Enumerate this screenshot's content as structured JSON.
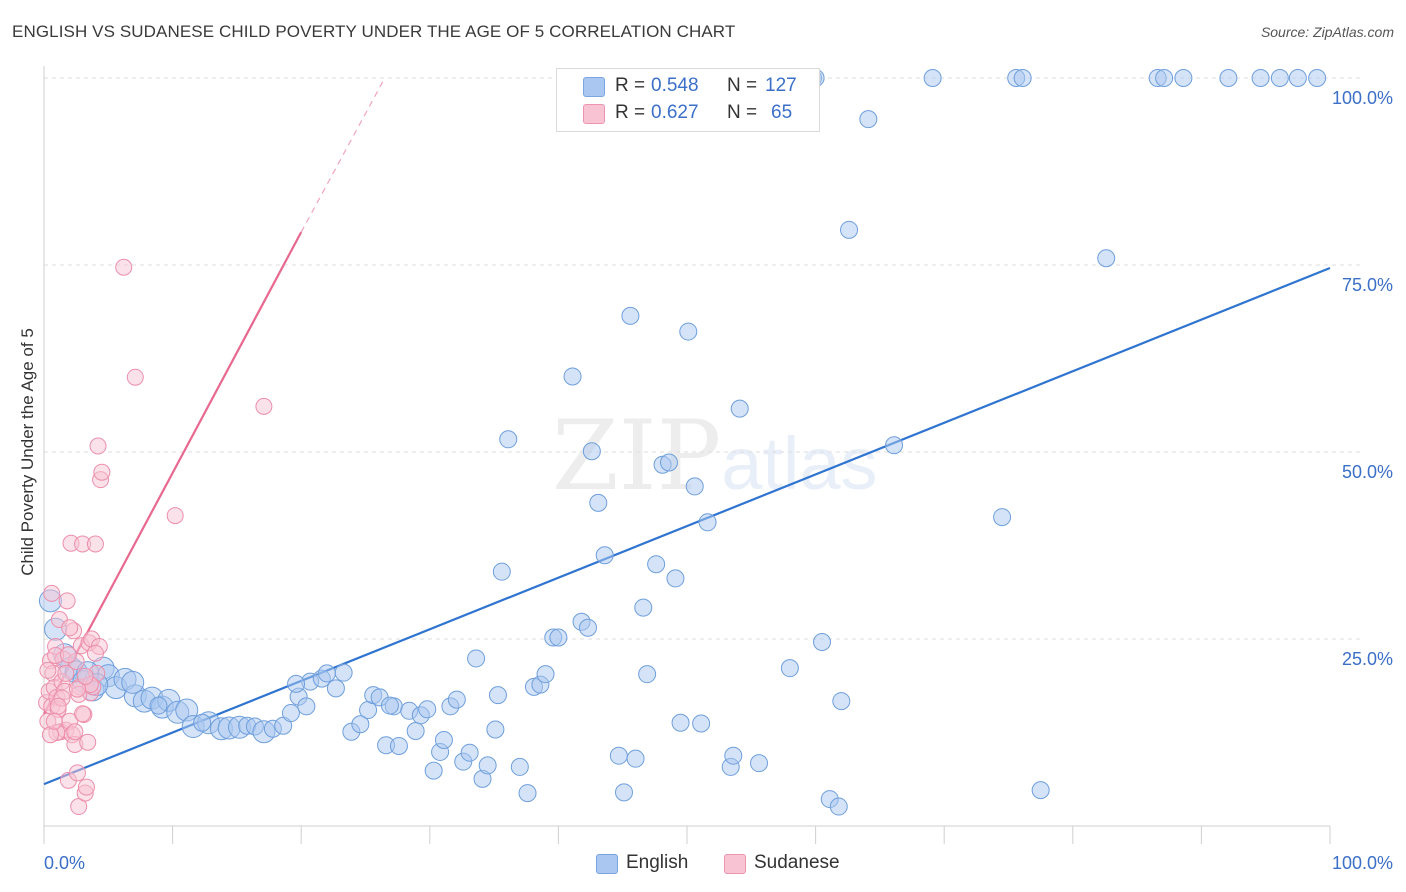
{
  "title": "ENGLISH VS SUDANESE CHILD POVERTY UNDER THE AGE OF 5 CORRELATION CHART",
  "source": "Source: ZipAtlas.com",
  "watermark": {
    "zip": "ZIP",
    "atlas": "atlas"
  },
  "legend": {
    "rows": [
      {
        "r_label": "R =",
        "r_value": "0.548",
        "n_label": "N =",
        "n_value": "127",
        "color": "#a9c7f0",
        "border": "#7aa6e0"
      },
      {
        "r_label": "R =",
        "r_value": "0.627",
        "n_label": "N =",
        "n_value": "65",
        "color": "#f8c4d3",
        "border": "#ef94ae"
      }
    ]
  },
  "bottom_legend": [
    {
      "label": "English",
      "color": "#a9c7f0",
      "border": "#7aa6e0"
    },
    {
      "label": "Sudanese",
      "color": "#f8c4d3",
      "border": "#ef94ae"
    }
  ],
  "chart_data": {
    "type": "scatter",
    "xlabel": "",
    "ylabel": "Child Poverty Under the Age of 5",
    "xlim": [
      0,
      100
    ],
    "ylim": [
      0,
      100
    ],
    "x_tick_labels": [
      {
        "value": 0,
        "label": "0.0%"
      },
      {
        "value": 100,
        "label": "100.0%"
      }
    ],
    "y_tick_labels": [
      {
        "value": 100,
        "label": "100.0%"
      },
      {
        "value": 75,
        "label": "75.0%"
      },
      {
        "value": 50,
        "label": "50.0%"
      },
      {
        "value": 25,
        "label": "25.0%"
      }
    ],
    "grid": true,
    "series": [
      {
        "name": "English",
        "color": "#a9c7f0",
        "edge": "#6f9fdc",
        "trend_color": "#2f74d0",
        "trend": {
          "x": [
            0,
            100
          ],
          "y": [
            5.6,
            74.6
          ]
        },
        "points": [
          [
            0.5,
            30.1,
            2
          ],
          [
            0.9,
            26.3,
            2
          ],
          [
            1.6,
            22.9,
            2
          ],
          [
            2.1,
            21.1,
            2
          ],
          [
            2.5,
            20.6,
            2
          ],
          [
            3.1,
            19.3,
            2
          ],
          [
            3.8,
            18.2,
            2
          ],
          [
            4.6,
            21.1,
            2
          ],
          [
            5.0,
            20.1,
            2
          ],
          [
            5.6,
            18.5,
            2
          ],
          [
            6.3,
            19.6,
            2
          ],
          [
            7.1,
            17.4,
            2
          ],
          [
            7.8,
            16.7,
            2
          ],
          [
            8.4,
            17.1,
            2
          ],
          [
            9.2,
            15.9,
            2
          ],
          [
            9.7,
            16.8,
            2
          ],
          [
            10.4,
            15.2,
            2
          ],
          [
            11.1,
            15.5,
            2
          ],
          [
            11.6,
            13.3,
            2
          ],
          [
            12.8,
            13.8,
            2
          ],
          [
            13.8,
            13.0,
            2
          ],
          [
            14.4,
            13.1,
            2
          ],
          [
            15.2,
            13.2,
            2
          ],
          [
            15.8,
            13.4,
            1
          ],
          [
            16.4,
            13.3,
            1
          ],
          [
            17.1,
            12.6,
            2
          ],
          [
            17.8,
            13.0,
            1
          ],
          [
            18.6,
            13.4,
            1
          ],
          [
            19.2,
            15.1,
            1
          ],
          [
            19.8,
            17.3,
            1
          ],
          [
            20.4,
            16.0,
            1
          ],
          [
            20.7,
            19.3,
            1
          ],
          [
            21.6,
            19.7,
            1
          ],
          [
            22.0,
            20.4,
            1
          ],
          [
            22.7,
            18.4,
            1
          ],
          [
            23.3,
            20.5,
            1
          ],
          [
            23.9,
            12.6,
            1
          ],
          [
            24.6,
            13.6,
            1
          ],
          [
            25.2,
            15.5,
            1
          ],
          [
            25.6,
            17.5,
            1
          ],
          [
            26.1,
            17.2,
            1
          ],
          [
            26.6,
            10.8,
            1
          ],
          [
            27.2,
            16.0,
            1
          ],
          [
            27.6,
            10.7,
            1
          ],
          [
            28.4,
            15.4,
            1
          ],
          [
            28.9,
            12.7,
            1
          ],
          [
            29.3,
            14.8,
            1
          ],
          [
            29.8,
            15.6,
            1
          ],
          [
            30.3,
            7.4,
            1
          ],
          [
            30.8,
            9.9,
            1
          ],
          [
            31.1,
            11.5,
            1
          ],
          [
            31.6,
            16.0,
            1
          ],
          [
            32.1,
            16.9,
            1
          ],
          [
            32.6,
            8.6,
            1
          ],
          [
            33.1,
            9.8,
            1
          ],
          [
            33.6,
            22.4,
            1
          ],
          [
            34.1,
            6.3,
            1
          ],
          [
            34.5,
            8.1,
            1
          ],
          [
            35.1,
            12.9,
            1
          ],
          [
            35.3,
            17.5,
            1
          ],
          [
            35.6,
            34.0,
            1
          ],
          [
            36.1,
            51.7,
            1
          ],
          [
            37.0,
            7.9,
            1
          ],
          [
            37.6,
            4.4,
            1
          ],
          [
            38.1,
            18.6,
            1
          ],
          [
            38.6,
            18.9,
            1
          ],
          [
            39.0,
            20.3,
            1
          ],
          [
            39.6,
            25.2,
            1
          ],
          [
            40.0,
            25.2,
            1
          ],
          [
            41.1,
            60.1,
            1
          ],
          [
            41.8,
            27.3,
            1
          ],
          [
            42.3,
            26.5,
            1
          ],
          [
            42.6,
            50.1,
            1
          ],
          [
            43.1,
            43.2,
            1
          ],
          [
            43.6,
            36.2,
            1
          ],
          [
            44.7,
            9.4,
            1
          ],
          [
            45.1,
            4.5,
            1
          ],
          [
            45.6,
            68.2,
            1
          ],
          [
            46.0,
            9.0,
            1
          ],
          [
            46.6,
            29.2,
            1
          ],
          [
            46.9,
            20.3,
            1
          ],
          [
            47.6,
            35.0,
            1
          ],
          [
            48.1,
            48.3,
            1
          ],
          [
            48.6,
            48.6,
            1
          ],
          [
            49.1,
            33.1,
            1
          ],
          [
            49.5,
            13.8,
            1
          ],
          [
            50.1,
            66.1,
            1
          ],
          [
            50.6,
            45.4,
            1
          ],
          [
            51.1,
            13.7,
            1
          ],
          [
            51.6,
            40.6,
            1
          ],
          [
            53.4,
            7.9,
            1
          ],
          [
            53.6,
            9.4,
            1
          ],
          [
            54.1,
            55.8,
            1
          ],
          [
            55.1,
            100,
            1
          ],
          [
            55.6,
            8.4,
            1
          ],
          [
            57.0,
            100,
            1
          ],
          [
            58.0,
            21.1,
            1
          ],
          [
            59.8,
            100,
            1
          ],
          [
            60.0,
            100,
            1
          ],
          [
            60.5,
            24.6,
            1
          ],
          [
            61.1,
            3.6,
            1
          ],
          [
            61.8,
            2.6,
            1
          ],
          [
            62.0,
            16.7,
            1
          ],
          [
            62.6,
            79.7,
            1
          ],
          [
            64.1,
            94.5,
            1
          ],
          [
            66.1,
            50.9,
            1
          ],
          [
            69.1,
            100,
            1
          ],
          [
            75.6,
            100,
            1
          ],
          [
            76.1,
            100,
            1
          ],
          [
            74.5,
            41.3,
            1
          ],
          [
            77.5,
            4.8,
            1
          ],
          [
            82.6,
            75.9,
            1
          ],
          [
            86.6,
            100,
            1
          ],
          [
            87.1,
            100,
            1
          ],
          [
            88.6,
            100,
            1
          ],
          [
            92.1,
            100,
            1
          ],
          [
            94.6,
            100,
            1
          ],
          [
            96.1,
            100,
            1
          ],
          [
            97.5,
            100,
            1
          ],
          [
            99.0,
            100,
            1
          ],
          [
            3.4,
            20.5,
            2
          ],
          [
            4.1,
            18.9,
            2
          ],
          [
            6.9,
            19.2,
            2
          ],
          [
            8.9,
            16.1,
            1
          ],
          [
            12.3,
            13.8,
            1
          ],
          [
            19.6,
            19.0,
            1
          ],
          [
            26.9,
            16.1,
            1
          ]
        ]
      },
      {
        "name": "Sudanese",
        "color": "#f8c4d3",
        "edge": "#ec8fab",
        "trend_color": "#e8688f",
        "trend": {
          "x": [
            0,
            20
          ],
          "y": [
            15.0,
            79.4
          ]
        },
        "trend_dashed_to": {
          "x": 26.5,
          "y": 100
        },
        "points": [
          [
            0.2,
            16.5
          ],
          [
            0.3,
            14.0
          ],
          [
            0.4,
            18.0
          ],
          [
            0.5,
            22.1
          ],
          [
            0.6,
            16.0
          ],
          [
            0.7,
            20.4
          ],
          [
            0.8,
            18.5
          ],
          [
            0.9,
            24.0
          ],
          [
            1.0,
            17.2
          ],
          [
            1.1,
            15.6
          ],
          [
            1.2,
            27.6
          ],
          [
            1.3,
            12.6
          ],
          [
            1.4,
            19.3
          ],
          [
            1.5,
            22.3
          ],
          [
            1.6,
            18.0
          ],
          [
            1.7,
            12.8
          ],
          [
            1.8,
            30.1
          ],
          [
            1.9,
            6.1
          ],
          [
            2.0,
            14.0
          ],
          [
            2.1,
            37.8
          ],
          [
            2.2,
            12.2
          ],
          [
            2.3,
            26.1
          ],
          [
            2.4,
            10.9
          ],
          [
            2.5,
            22.0
          ],
          [
            2.6,
            7.1
          ],
          [
            2.7,
            2.6
          ],
          [
            2.8,
            18.6
          ],
          [
            2.9,
            24.1
          ],
          [
            3.0,
            37.7
          ],
          [
            3.1,
            14.9
          ],
          [
            3.2,
            4.4
          ],
          [
            3.3,
            5.2
          ],
          [
            3.4,
            11.2
          ],
          [
            3.5,
            24.5
          ],
          [
            3.6,
            17.8
          ],
          [
            3.7,
            25.0
          ],
          [
            3.8,
            18.6
          ],
          [
            4.0,
            37.7
          ],
          [
            4.1,
            20.4
          ],
          [
            4.2,
            50.8
          ],
          [
            4.3,
            24.0
          ],
          [
            4.4,
            46.3
          ],
          [
            4.5,
            47.3
          ],
          [
            6.2,
            74.7
          ],
          [
            7.1,
            60.0
          ],
          [
            10.2,
            41.5
          ],
          [
            17.1,
            56.1
          ],
          [
            0.6,
            31.1
          ],
          [
            1.0,
            12.5
          ],
          [
            1.4,
            17.1
          ],
          [
            2.0,
            26.5
          ],
          [
            2.7,
            17.6
          ],
          [
            3.6,
            18.9
          ],
          [
            4.0,
            23.1
          ],
          [
            0.3,
            20.8
          ],
          [
            0.9,
            22.8
          ],
          [
            1.7,
            20.4
          ],
          [
            2.4,
            12.6
          ],
          [
            3.0,
            15.0
          ],
          [
            0.5,
            12.2
          ],
          [
            1.1,
            16.0
          ],
          [
            1.9,
            22.9
          ],
          [
            2.6,
            18.3
          ],
          [
            3.2,
            20.0
          ],
          [
            0.8,
            14.0
          ]
        ]
      }
    ]
  }
}
